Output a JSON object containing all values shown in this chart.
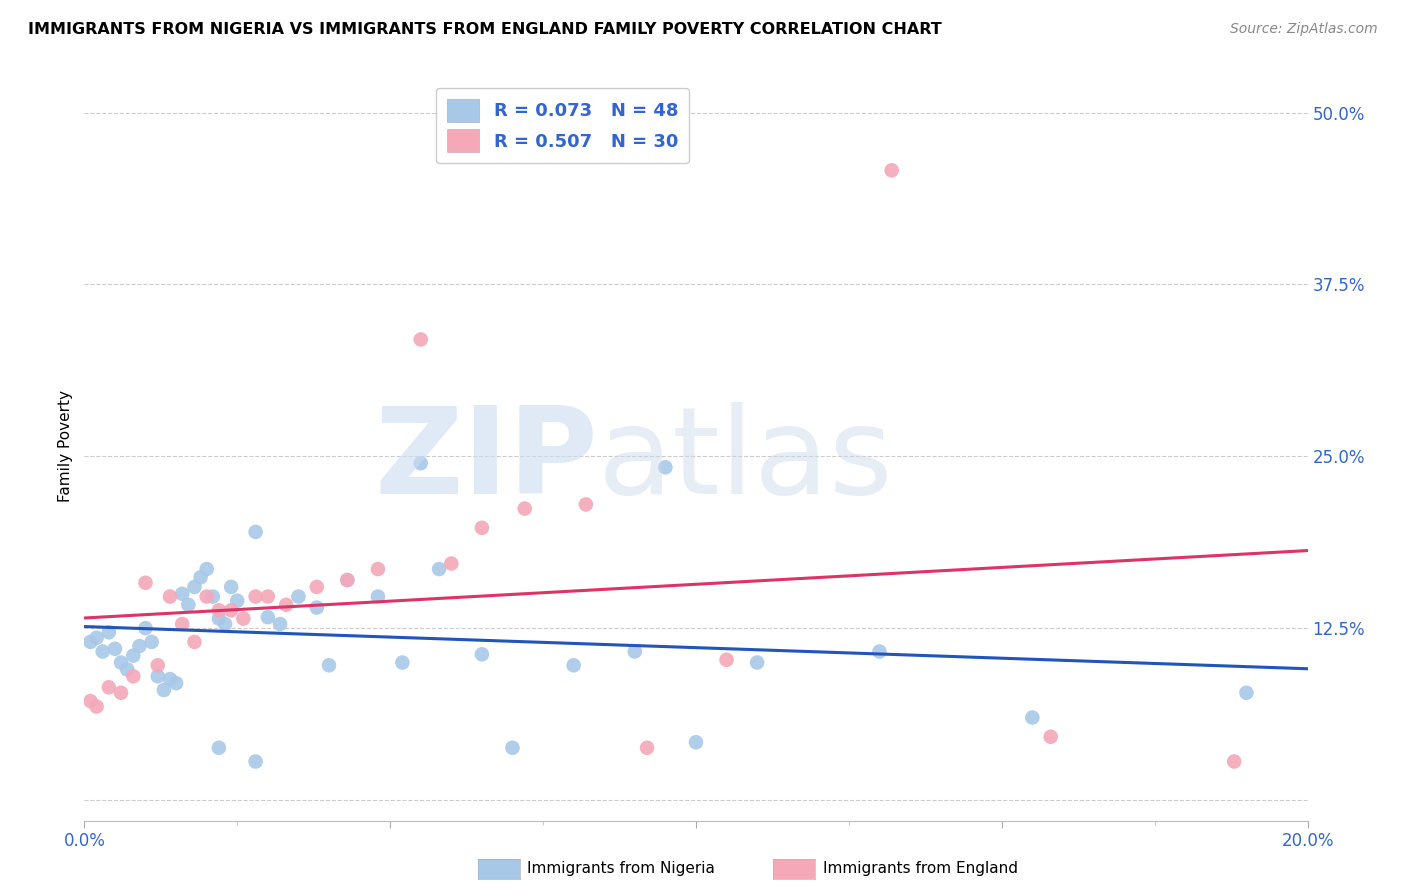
{
  "title": "IMMIGRANTS FROM NIGERIA VS IMMIGRANTS FROM ENGLAND FAMILY POVERTY CORRELATION CHART",
  "source": "Source: ZipAtlas.com",
  "ylabel": "Family Poverty",
  "xlim": [
    0.0,
    0.2
  ],
  "ylim": [
    -0.015,
    0.53
  ],
  "yticks": [
    0.0,
    0.125,
    0.25,
    0.375,
    0.5
  ],
  "ytick_labels": [
    "",
    "12.5%",
    "25.0%",
    "37.5%",
    "50.0%"
  ],
  "nigeria_color": "#a8c8e8",
  "england_color": "#f4a8b8",
  "nigeria_line_color": "#2255bb",
  "england_line_color": "#dd3366",
  "nigeria_R": 0.073,
  "nigeria_N": 48,
  "england_R": 0.507,
  "england_N": 30,
  "nigeria_x": [
    0.001,
    0.002,
    0.003,
    0.004,
    0.005,
    0.006,
    0.007,
    0.008,
    0.009,
    0.01,
    0.011,
    0.012,
    0.013,
    0.014,
    0.015,
    0.016,
    0.017,
    0.018,
    0.019,
    0.02,
    0.021,
    0.022,
    0.023,
    0.024,
    0.025,
    0.028,
    0.03,
    0.032,
    0.035,
    0.038,
    0.04,
    0.043,
    0.048,
    0.052,
    0.055,
    0.058,
    0.065,
    0.07,
    0.08,
    0.09,
    0.095,
    0.1,
    0.11,
    0.13,
    0.155,
    0.19,
    0.022,
    0.028
  ],
  "nigeria_y": [
    0.115,
    0.118,
    0.108,
    0.122,
    0.11,
    0.1,
    0.095,
    0.105,
    0.112,
    0.125,
    0.115,
    0.09,
    0.08,
    0.088,
    0.085,
    0.15,
    0.142,
    0.155,
    0.162,
    0.168,
    0.148,
    0.132,
    0.128,
    0.155,
    0.145,
    0.195,
    0.133,
    0.128,
    0.148,
    0.14,
    0.098,
    0.16,
    0.148,
    0.1,
    0.245,
    0.168,
    0.106,
    0.038,
    0.098,
    0.108,
    0.242,
    0.042,
    0.1,
    0.108,
    0.06,
    0.078,
    0.038,
    0.028
  ],
  "england_x": [
    0.001,
    0.002,
    0.004,
    0.006,
    0.008,
    0.01,
    0.012,
    0.014,
    0.016,
    0.018,
    0.02,
    0.022,
    0.024,
    0.026,
    0.028,
    0.03,
    0.033,
    0.038,
    0.043,
    0.048,
    0.055,
    0.06,
    0.065,
    0.072,
    0.082,
    0.092,
    0.105,
    0.132,
    0.158,
    0.188
  ],
  "england_y": [
    0.072,
    0.068,
    0.082,
    0.078,
    0.09,
    0.158,
    0.098,
    0.148,
    0.128,
    0.115,
    0.148,
    0.138,
    0.138,
    0.132,
    0.148,
    0.148,
    0.142,
    0.155,
    0.16,
    0.168,
    0.335,
    0.172,
    0.198,
    0.212,
    0.215,
    0.038,
    0.102,
    0.458,
    0.046,
    0.028
  ]
}
